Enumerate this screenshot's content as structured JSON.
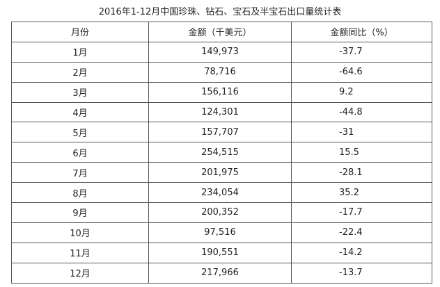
{
  "header": {
    "title": "2016年1-12月中国珍珠、钻石、宝石及半宝石出口量统计表"
  },
  "table": {
    "columns": [
      "月份",
      "金额（千美元）",
      "金额同比（%）"
    ],
    "rows": [
      [
        "1月",
        "149,973",
        "-37.7"
      ],
      [
        "2月",
        "78,716",
        "-64.6"
      ],
      [
        "3月",
        "156,116",
        "9.2"
      ],
      [
        "4月",
        "124,301",
        "-44.8"
      ],
      [
        "5月",
        "157,707",
        "-31"
      ],
      [
        "6月",
        "254,515",
        "15.5"
      ],
      [
        "7月",
        "201,975",
        "-28.1"
      ],
      [
        "8月",
        "234,054",
        "35.2"
      ],
      [
        "9月",
        "200,352",
        "-17.7"
      ],
      [
        "10月",
        "97,516",
        "-22.4"
      ],
      [
        "11月",
        "190,551",
        "-14.2"
      ],
      [
        "12月",
        "217,966",
        "-13.7"
      ]
    ]
  }
}
